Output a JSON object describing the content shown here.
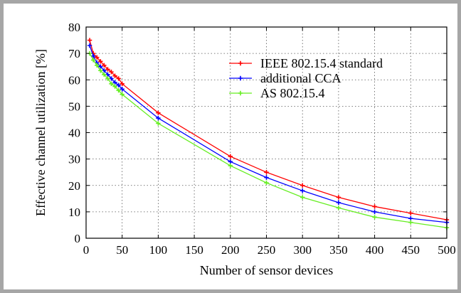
{
  "chart_data": {
    "type": "line",
    "title": "",
    "xlabel": "Number of sensor devices",
    "ylabel": "Effective channel utilization [%]",
    "xlim": [
      0,
      500
    ],
    "ylim": [
      0,
      80
    ],
    "xticks": [
      0,
      50,
      100,
      150,
      200,
      250,
      300,
      350,
      400,
      450,
      500
    ],
    "yticks": [
      0,
      10,
      20,
      30,
      40,
      50,
      60,
      70,
      80
    ],
    "grid": true,
    "legend_position": "top-right",
    "series": [
      {
        "name": "IEEE 802.15.4 standard",
        "color": "#ff0000",
        "x": [
          5,
          10,
          15,
          20,
          25,
          30,
          35,
          40,
          45,
          50,
          100,
          200,
          250,
          300,
          350,
          400,
          450,
          500
        ],
        "y": [
          75,
          70,
          68.5,
          67,
          65.5,
          64,
          63,
          61.5,
          60.5,
          58.5,
          47.5,
          31,
          25,
          20,
          15.5,
          12,
          9.5,
          7
        ]
      },
      {
        "name": "additional CCA",
        "color": "#0000ff",
        "x": [
          5,
          10,
          15,
          20,
          25,
          30,
          35,
          40,
          45,
          50,
          100,
          200,
          250,
          300,
          350,
          400,
          450,
          500
        ],
        "y": [
          73,
          69,
          66.5,
          65,
          63.5,
          62,
          60.5,
          59,
          58,
          56.5,
          45.5,
          29,
          23,
          18,
          13.5,
          10,
          7.5,
          6
        ]
      },
      {
        "name": "AS 802.15.4",
        "color": "#66ee22",
        "x": [
          5,
          10,
          15,
          20,
          25,
          30,
          35,
          40,
          45,
          50,
          100,
          200,
          250,
          300,
          350,
          400,
          450,
          500
        ],
        "y": [
          70,
          67.5,
          65.5,
          63.5,
          62,
          60.5,
          58.5,
          57.5,
          56,
          54.5,
          43.5,
          27.5,
          21,
          15.5,
          11.5,
          8,
          6,
          4
        ]
      }
    ]
  }
}
